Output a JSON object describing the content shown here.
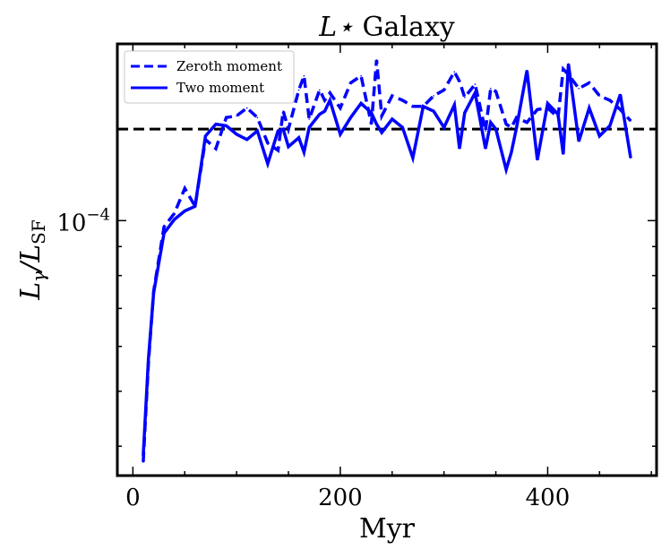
{
  "chart_data": {
    "type": "line",
    "title_math": "L⋆",
    "title_text": "Galaxy",
    "xlabel": "Myr",
    "ylabel_main": "L",
    "ylabel_sub1": "γ",
    "ylabel_sep": "/L",
    "ylabel_sub2": "SF",
    "xlim": [
      -15,
      505
    ],
    "ylog": true,
    "ylim": [
      3.55e-05,
      0.000205
    ],
    "xticks": [
      0,
      200,
      400
    ],
    "xtick_labels": [
      "0",
      "200",
      "400"
    ],
    "ytick_major": [
      0.0001
    ],
    "ytick_major_base": "10",
    "ytick_major_exp": "−4",
    "ytick_minor": [
      4e-05,
      5e-05,
      6e-05,
      7e-05,
      8e-05,
      9e-05
    ],
    "hline": {
      "y": 0.000145,
      "style": "dashed",
      "color": "#000000"
    },
    "color": "#0000ff",
    "legend_position": "top-left",
    "series": [
      {
        "name": "Zeroth moment",
        "style": "dashed",
        "x": [
          10,
          15,
          20,
          30,
          40,
          50,
          60,
          70,
          80,
          90,
          100,
          110,
          120,
          130,
          140,
          145,
          150,
          160,
          165,
          170,
          180,
          185,
          190,
          200,
          210,
          220,
          230,
          235,
          240,
          250,
          260,
          270,
          280,
          290,
          300,
          310,
          315,
          320,
          330,
          340,
          345,
          350,
          360,
          365,
          370,
          380,
          390,
          400,
          410,
          415,
          420,
          430,
          440,
          450,
          460,
          470,
          480
        ],
        "y": [
          3.75e-05,
          5.6e-05,
          7.5e-05,
          9.75e-05,
          0.000103,
          0.000114,
          0.000106,
          0.000139,
          0.000134,
          0.000152,
          0.000153,
          0.000158,
          0.000152,
          0.000137,
          0.000133,
          0.000156,
          0.000145,
          0.00017,
          0.00018,
          0.000151,
          0.00017,
          0.000163,
          0.000168,
          0.000158,
          0.000175,
          0.00018,
          0.000148,
          0.000192,
          0.000153,
          0.000166,
          0.000163,
          0.000159,
          0.000159,
          0.000166,
          0.00017,
          0.000183,
          0.000176,
          0.000165,
          0.000174,
          0.000144,
          0.000171,
          0.000169,
          0.000148,
          0.000146,
          0.000152,
          0.000149,
          0.000157,
          0.000158,
          0.000152,
          0.000185,
          0.000181,
          0.000171,
          0.000175,
          0.000166,
          0.000163,
          0.000157,
          0.00015
        ]
      },
      {
        "name": "Two moment",
        "style": "solid",
        "x": [
          10,
          15,
          20,
          30,
          40,
          50,
          60,
          70,
          80,
          90,
          100,
          110,
          120,
          130,
          140,
          145,
          150,
          160,
          165,
          170,
          180,
          185,
          190,
          200,
          210,
          220,
          230,
          235,
          240,
          250,
          260,
          270,
          280,
          290,
          300,
          310,
          315,
          320,
          330,
          340,
          345,
          350,
          360,
          365,
          370,
          380,
          390,
          400,
          410,
          415,
          420,
          430,
          440,
          450,
          460,
          470,
          480
        ],
        "y": [
          3.85e-05,
          5.7e-05,
          7.45e-05,
          9.5e-05,
          0.0001005,
          0.000104,
          0.000106,
          0.000141,
          0.000148,
          0.000147,
          0.000142,
          0.000139,
          0.000144,
          0.000126,
          0.000144,
          0.000145,
          0.000135,
          0.00014,
          0.000132,
          0.000146,
          0.000154,
          0.000156,
          0.000163,
          0.000142,
          0.000152,
          0.000161,
          0.000155,
          0.000148,
          0.000143,
          0.000151,
          0.000146,
          0.000129,
          0.000159,
          0.000156,
          0.000146,
          0.00016,
          0.000134,
          0.000155,
          0.000168,
          0.000134,
          0.000149,
          0.000145,
          0.000123,
          0.000132,
          0.000146,
          0.000184,
          0.000128,
          0.000161,
          0.000154,
          0.000131,
          0.000189,
          0.000138,
          0.000158,
          0.000141,
          0.000147,
          0.000167,
          0.000129
        ]
      }
    ]
  }
}
